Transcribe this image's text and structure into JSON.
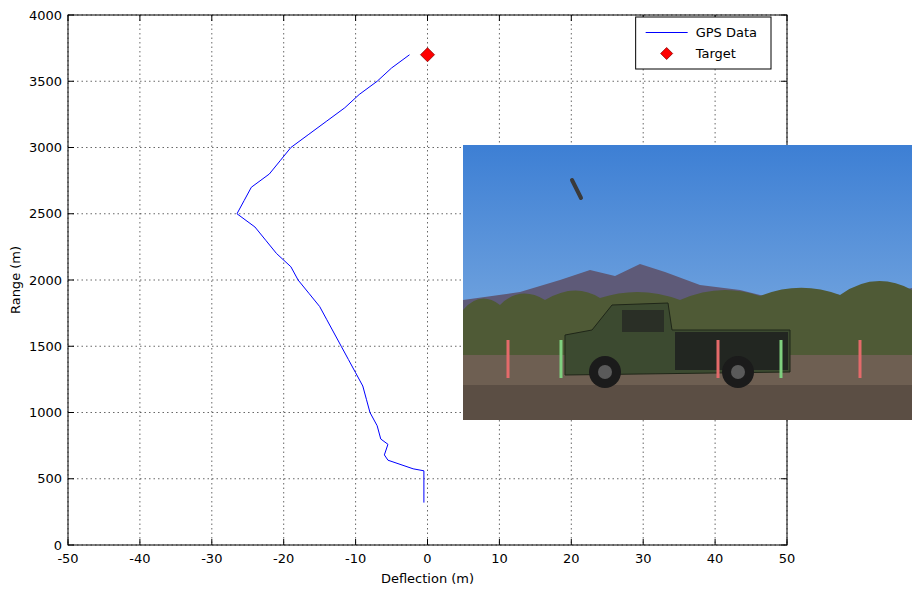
{
  "chart_data": {
    "type": "line",
    "x_label": "Deflection (m)",
    "y_label": "Range (m)",
    "xlim": [
      -50,
      50
    ],
    "xticks": [
      -50,
      -40,
      -30,
      -20,
      -10,
      0,
      10,
      20,
      30,
      40,
      50
    ],
    "ylim": [
      0,
      4000
    ],
    "yticks": [
      0,
      500,
      1000,
      1500,
      2000,
      2500,
      3000,
      3500,
      4000
    ],
    "grid": true,
    "legend": "upper right",
    "series": [
      {
        "name": "GPS Data",
        "type": "line",
        "color": "#0000ff",
        "line_style": "solid",
        "x": [
          -0.5,
          -0.5,
          -2,
          -5.5,
          -6,
          -5.5,
          -6.5,
          -7,
          -8,
          -8.5,
          -9,
          -10,
          -11,
          -12,
          -13,
          -14,
          -15,
          -16.5,
          -18,
          -19,
          -21,
          -22.5,
          -24,
          -26.5,
          -25.5,
          -24.5,
          -22,
          -20.5,
          -19,
          -16.5,
          -14,
          -11.5,
          -9.5,
          -7,
          -5,
          -2.5
        ],
        "values": [
          320,
          560,
          575,
          640,
          680,
          760,
          800,
          900,
          1000,
          1100,
          1200,
          1300,
          1400,
          1500,
          1600,
          1700,
          1800,
          1900,
          2000,
          2100,
          2200,
          2300,
          2400,
          2500,
          2600,
          2700,
          2800,
          2900,
          3000,
          3100,
          3200,
          3300,
          3400,
          3500,
          3600,
          3700
        ]
      },
      {
        "name": "Target",
        "type": "scatter",
        "color": "#ff0000",
        "marker": "diamond",
        "x": [
          0
        ],
        "values": [
          3700
        ]
      }
    ]
  }
}
